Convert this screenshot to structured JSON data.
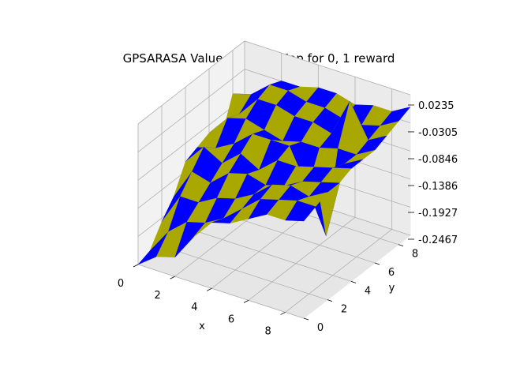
{
  "chart_data": {
    "type": "surface3d",
    "title": "GPSARASA Value function Map for 0, 1 reward",
    "xlabel": "x",
    "ylabel": "y",
    "zlabel": "",
    "x_ticks": [
      "0",
      "2",
      "4",
      "6",
      "8"
    ],
    "y_ticks": [
      "0",
      "2",
      "4",
      "6",
      "8"
    ],
    "z_ticks": [
      "0.0235",
      "-0.0305",
      "-0.0846",
      "-0.1386",
      "-0.1927",
      "-0.2467"
    ],
    "x": [
      0,
      1,
      2,
      3,
      4,
      5,
      6,
      7,
      8,
      9
    ],
    "y": [
      0,
      1,
      2,
      3,
      4,
      5,
      6,
      7,
      8,
      9
    ],
    "zlim": [
      -0.2467,
      0.0235
    ],
    "grid": true,
    "facecolors": [
      "#0000ff",
      "#a8a800"
    ],
    "z": [
      [
        -0.2467,
        -0.238,
        -0.2,
        -0.17,
        -0.12,
        -0.11,
        -0.1,
        -0.13,
        -0.06,
        -0.11
      ],
      [
        -0.22,
        -0.19,
        -0.14,
        -0.11,
        -0.08,
        -0.1,
        -0.06,
        -0.07,
        -0.05,
        -0.06
      ],
      [
        -0.21,
        -0.16,
        -0.14,
        -0.12,
        -0.1,
        -0.08,
        -0.05,
        -0.03,
        -0.02,
        -0.03
      ],
      [
        -0.16,
        -0.15,
        -0.12,
        -0.09,
        -0.07,
        -0.05,
        -0.06,
        -0.03,
        -0.02,
        -0.03
      ],
      [
        -0.12,
        -0.13,
        -0.11,
        -0.08,
        -0.09,
        -0.05,
        -0.07,
        -0.04,
        -0.03,
        -0.02
      ],
      [
        -0.11,
        -0.1,
        -0.09,
        -0.09,
        -0.06,
        -0.05,
        -0.06,
        -0.04,
        -0.03,
        -0.02
      ],
      [
        -0.09,
        -0.07,
        -0.06,
        -0.08,
        -0.06,
        -0.12,
        -0.06,
        -0.05,
        -0.04,
        -0.03
      ],
      [
        -0.07,
        -0.06,
        -0.05,
        -0.06,
        -0.05,
        -0.2,
        -0.05,
        0.0235,
        -0.04,
        -0.02
      ],
      [
        -0.07,
        -0.05,
        -0.06,
        -0.05,
        -0.04,
        -0.05,
        -0.05,
        -0.04,
        -0.03,
        -0.02
      ],
      [
        -0.06,
        -0.05,
        -0.04,
        -0.04,
        -0.03,
        -0.03,
        -0.03,
        -0.02,
        -0.01,
        0.0
      ]
    ]
  }
}
